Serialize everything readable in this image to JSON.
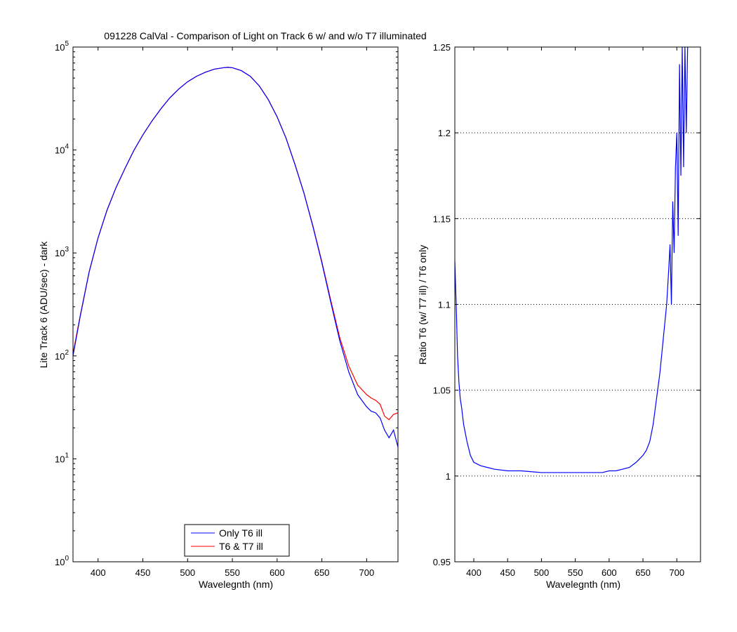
{
  "title": "091228 CalVal - Comparison of Light on Track 6 w/ and w/o T7 illuminated",
  "colors": {
    "only_t6": "#0000ff",
    "t6_t7": "#ff0000",
    "axes": "#000000",
    "grid": "#000000"
  },
  "chart_data": [
    {
      "type": "line",
      "title": "091228 CalVal - Comparison of Light on Track 6 w/ and w/o T7 illuminated",
      "xlabel": "Wavelegnth (nm)",
      "ylabel": "Lite Track 6 (ADU/sec) - dark",
      "xlim": [
        372,
        735
      ],
      "ylim": [
        1,
        100000
      ],
      "yscale": "log",
      "grid": false,
      "legend_position": "bottom-center",
      "x_ticks": [
        400,
        450,
        500,
        550,
        600,
        650,
        700
      ],
      "y_ticks": [
        {
          "value": 1,
          "base": "10",
          "exp": "0"
        },
        {
          "value": 10,
          "base": "10",
          "exp": "1"
        },
        {
          "value": 100,
          "base": "10",
          "exp": "2"
        },
        {
          "value": 1000,
          "base": "10",
          "exp": "3"
        },
        {
          "value": 10000,
          "base": "10",
          "exp": "4"
        },
        {
          "value": 100000,
          "base": "10",
          "exp": "5"
        }
      ],
      "series": [
        {
          "name": "Only T6 ill",
          "color": "#0000ff",
          "x": [
            372,
            380,
            390,
            400,
            410,
            420,
            430,
            440,
            450,
            460,
            470,
            480,
            490,
            500,
            510,
            520,
            530,
            540,
            545,
            550,
            560,
            570,
            580,
            590,
            600,
            610,
            620,
            630,
            640,
            650,
            660,
            670,
            680,
            690,
            700,
            705,
            710,
            715,
            720,
            725,
            730,
            735
          ],
          "y": [
            100,
            240,
            650,
            1400,
            2600,
            4300,
            6600,
            9900,
            14000,
            19000,
            25000,
            32000,
            39000,
            46000,
            52000,
            57000,
            61000,
            63000,
            63500,
            63000,
            59000,
            52000,
            42000,
            31000,
            21000,
            13000,
            7200,
            3800,
            1800,
            800,
            330,
            140,
            70,
            42,
            32,
            29,
            28,
            25,
            19,
            16,
            19,
            13
          ]
        },
        {
          "name": "T6 & T7 ill",
          "color": "#ff0000",
          "x": [
            372,
            380,
            390,
            400,
            410,
            420,
            430,
            440,
            450,
            460,
            470,
            480,
            490,
            500,
            510,
            520,
            530,
            540,
            545,
            550,
            560,
            570,
            580,
            590,
            600,
            610,
            620,
            630,
            640,
            650,
            660,
            670,
            680,
            690,
            700,
            705,
            710,
            715,
            720,
            725,
            730,
            735
          ],
          "y": [
            105,
            245,
            655,
            1405,
            2605,
            4305,
            6605,
            9905,
            14010,
            19010,
            25010,
            32010,
            39010,
            46010,
            52010,
            57010,
            61010,
            63010,
            63510,
            63010,
            59010,
            52010,
            42010,
            31010,
            21010,
            13010,
            7220,
            3820,
            1830,
            820,
            345,
            150,
            80,
            52,
            42,
            39,
            37,
            34,
            26,
            24,
            27,
            28
          ]
        }
      ]
    },
    {
      "type": "line",
      "title": "",
      "xlabel": "Wavelegnth (nm)",
      "ylabel": "Ratio T6 (w/ T7 ill) / T6 only",
      "xlim": [
        372,
        735
      ],
      "ylim": [
        0.95,
        1.25
      ],
      "yscale": "linear",
      "grid": true,
      "grid_style": "dotted horizontal",
      "x_ticks": [
        400,
        450,
        500,
        550,
        600,
        650,
        700
      ],
      "y_ticks": [
        {
          "value": 0.95,
          "label": "0.95"
        },
        {
          "value": 1,
          "label": "1"
        },
        {
          "value": 1.05,
          "label": "1.05"
        },
        {
          "value": 1.1,
          "label": "1.1"
        },
        {
          "value": 1.15,
          "label": "1.15"
        },
        {
          "value": 1.2,
          "label": "1.2"
        },
        {
          "value": 1.25,
          "label": "1.25"
        }
      ],
      "series": [
        {
          "color": "#0000ff",
          "x": [
            372,
            374,
            376,
            378,
            380,
            382,
            385,
            390,
            395,
            400,
            410,
            420,
            430,
            450,
            470,
            500,
            530,
            550,
            570,
            590,
            600,
            610,
            620,
            630,
            640,
            645,
            650,
            655,
            660,
            665,
            670,
            675,
            680,
            685,
            688,
            690,
            692,
            694,
            696,
            698,
            700,
            702,
            704,
            706,
            708,
            710,
            712,
            714,
            716
          ],
          "y": [
            1.125,
            1.1,
            1.07,
            1.055,
            1.045,
            1.04,
            1.03,
            1.02,
            1.012,
            1.008,
            1.006,
            1.005,
            1.004,
            1.003,
            1.003,
            1.002,
            1.002,
            1.002,
            1.002,
            1.002,
            1.003,
            1.003,
            1.004,
            1.005,
            1.008,
            1.01,
            1.012,
            1.015,
            1.02,
            1.03,
            1.045,
            1.06,
            1.08,
            1.1,
            1.12,
            1.135,
            1.1,
            1.16,
            1.13,
            1.18,
            1.2,
            1.14,
            1.24,
            1.175,
            1.25,
            1.18,
            1.25,
            1.2,
            1.25
          ]
        }
      ]
    }
  ]
}
